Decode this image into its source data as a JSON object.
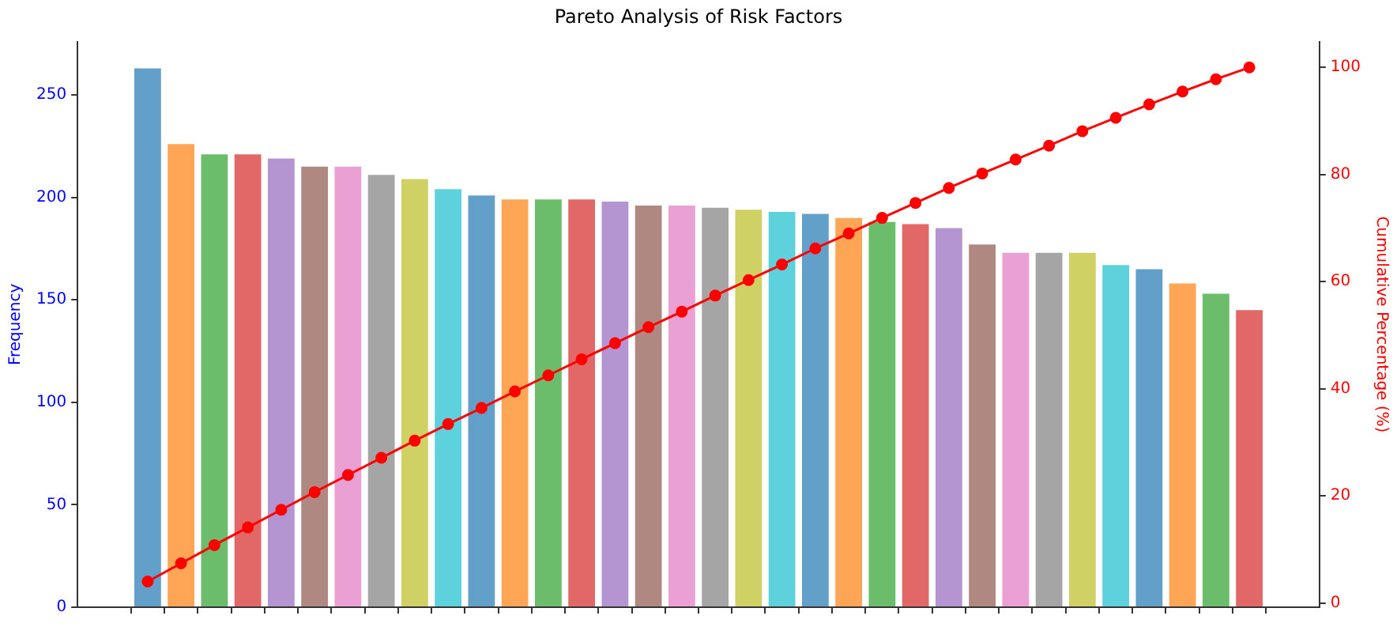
{
  "chart_data": {
    "type": "bar",
    "title": "Pareto Analysis of Risk Factors",
    "ylabel": "Frequency",
    "y2label": "Cumulative Percentage (%)",
    "categories": [
      null,
      null,
      null,
      null,
      null,
      null,
      null,
      null,
      null,
      null,
      null,
      null,
      null,
      null,
      null,
      null,
      null,
      null,
      null,
      null,
      null,
      null,
      null,
      null,
      null,
      null,
      null,
      null,
      null,
      null,
      null,
      null,
      null,
      null
    ],
    "series": [
      {
        "colors": [
          "#62a0ca",
          "#ffa556",
          "#6bbc6b",
          "#e26868",
          "#b495d1",
          "#af8981",
          "#eba0d4",
          "#a5a5a5",
          "#d0d164",
          "#5dd2dd",
          "#62a0ca",
          "#ffa556",
          "#6bbc6b",
          "#e26868",
          "#b495d1",
          "#af8981",
          "#eba0d4",
          "#a5a5a5",
          "#d0d164",
          "#5dd2dd",
          "#62a0ca",
          "#ffa556",
          "#6bbc6b",
          "#e26868",
          "#b495d1",
          "#af8981",
          "#eba0d4",
          "#a5a5a5",
          "#d0d164",
          "#5dd2dd",
          "#62a0ca",
          "#ffa556",
          "#6bbc6b",
          "#e26868"
        ],
        "values": [
          263,
          226,
          221,
          221,
          219,
          215,
          215,
          211,
          209,
          204,
          201,
          199,
          199,
          199,
          198,
          196,
          196,
          195,
          194,
          193,
          192,
          190,
          188,
          187,
          185,
          177,
          173,
          173,
          173,
          167,
          165,
          158,
          153,
          145
        ]
      },
      {
        "type": "line",
        "axis": "y2",
        "color": "#ff0000",
        "marker": "circle",
        "values": [
          4.0,
          7.4,
          10.8,
          14.1,
          17.4,
          20.7,
          23.9,
          27.1,
          30.3,
          33.4,
          36.4,
          39.5,
          42.5,
          45.5,
          48.5,
          51.5,
          54.4,
          57.4,
          60.3,
          63.2,
          66.2,
          69.0,
          71.9,
          74.7,
          77.5,
          80.2,
          82.8,
          85.4,
          88.1,
          90.6,
          93.1,
          95.5,
          97.8,
          100
        ]
      }
    ],
    "ylim": [
      0,
      276
    ],
    "yticks": [
      0,
      50,
      100,
      150,
      200,
      250
    ],
    "y2lim": [
      -0.8,
      104.8
    ],
    "y2ticks": [
      0,
      20,
      40,
      60,
      80,
      100
    ],
    "grid": false,
    "legend": false
  }
}
